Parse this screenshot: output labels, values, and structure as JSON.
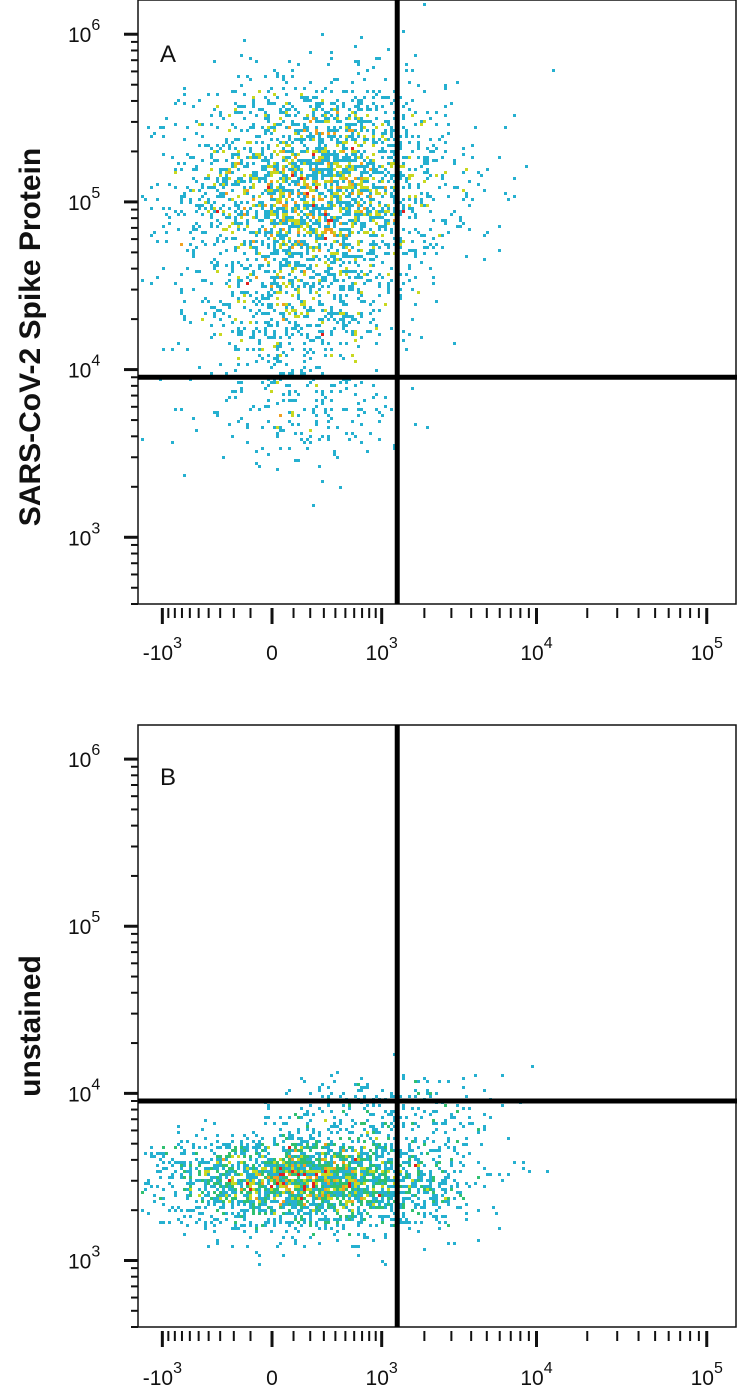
{
  "chart_data": [
    {
      "type": "scatter",
      "panel_label": "A",
      "ylabel": "SARS-CoV-2 Spike Protein",
      "xlabel": "",
      "x_scale": "biexponential",
      "y_scale": "log",
      "xlim": [
        -1500,
        150000
      ],
      "ylim": [
        400,
        1600000
      ],
      "x_ticks": [
        {
          "value": -1000,
          "base": "-10",
          "exp": "3"
        },
        {
          "value": 0,
          "base": "0",
          "exp": ""
        },
        {
          "value": 1000,
          "base": "10",
          "exp": "3"
        },
        {
          "value": 10000,
          "base": "10",
          "exp": "4"
        },
        {
          "value": 100000,
          "base": "10",
          "exp": "5"
        }
      ],
      "y_ticks": [
        {
          "value": 1000,
          "base": "10",
          "exp": "3"
        },
        {
          "value": 10000,
          "base": "10",
          "exp": "4"
        },
        {
          "value": 100000,
          "base": "10",
          "exp": "5"
        },
        {
          "value": 1000000,
          "base": "10",
          "exp": "6"
        }
      ],
      "gates": {
        "x": 1300,
        "y": 9000
      },
      "populations": [
        {
          "center": [
            250,
            120000
          ],
          "spread": [
            0.38,
            0.32
          ],
          "count": 2600
        },
        {
          "center": [
            100,
            22000
          ],
          "spread": [
            0.3,
            0.22
          ],
          "count": 500
        },
        {
          "center": [
            150,
            5500
          ],
          "spread": [
            0.28,
            0.16
          ],
          "count": 180
        }
      ],
      "grid": false,
      "legend": "none"
    },
    {
      "type": "scatter",
      "panel_label": "B",
      "ylabel": "unstained",
      "xlabel": "",
      "x_scale": "biexponential",
      "y_scale": "log",
      "xlim": [
        -1500,
        150000
      ],
      "ylim": [
        400,
        1600000
      ],
      "x_ticks": [
        {
          "value": -1000,
          "base": "-10",
          "exp": "3"
        },
        {
          "value": 0,
          "base": "0",
          "exp": ""
        },
        {
          "value": 1000,
          "base": "10",
          "exp": "3"
        },
        {
          "value": 10000,
          "base": "10",
          "exp": "4"
        },
        {
          "value": 100000,
          "base": "10",
          "exp": "5"
        }
      ],
      "y_ticks": [
        {
          "value": 1000,
          "base": "10",
          "exp": "3"
        },
        {
          "value": 10000,
          "base": "10",
          "exp": "4"
        },
        {
          "value": 100000,
          "base": "10",
          "exp": "5"
        },
        {
          "value": 1000000,
          "base": "10",
          "exp": "6"
        }
      ],
      "gates": {
        "x": 1300,
        "y": 9000
      },
      "populations": [
        {
          "center": [
            200,
            3000
          ],
          "spread": [
            0.42,
            0.14
          ],
          "count": 2600
        },
        {
          "center": [
            1200,
            8000
          ],
          "spread": [
            0.35,
            0.12
          ],
          "count": 220
        }
      ],
      "grid": false,
      "legend": "none"
    }
  ],
  "colors": {
    "density": [
      "#2a2ad0",
      "#2f6fe0",
      "#25b0d0",
      "#30c070",
      "#c8d820",
      "#f0a020",
      "#e02020"
    ],
    "axis": "#111111",
    "gate": "#000000"
  }
}
